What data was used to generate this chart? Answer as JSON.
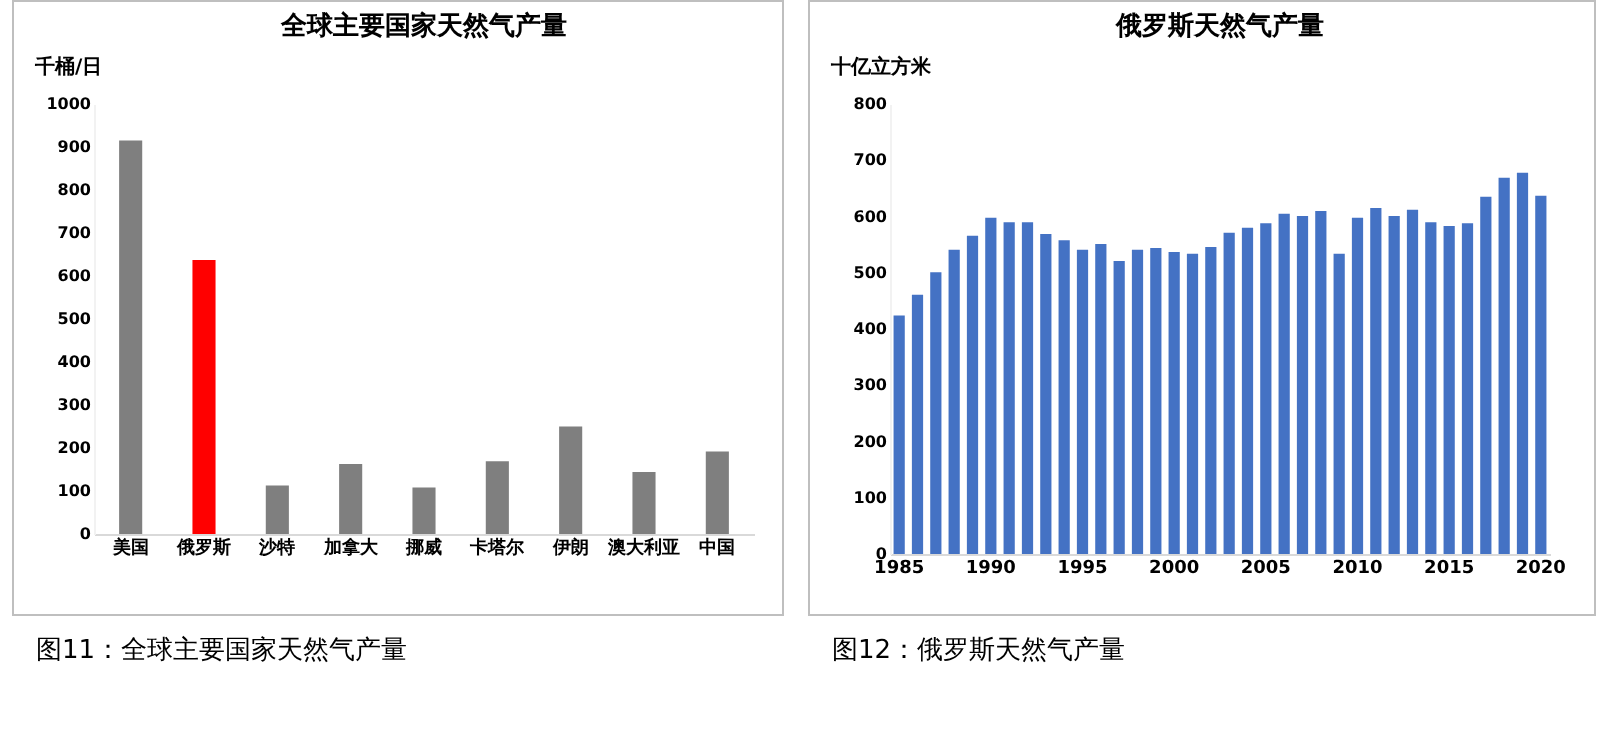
{
  "chart_data": [
    {
      "type": "bar",
      "title": "全球主要国家天然气产量",
      "ylabel": "千桶/日",
      "categories": [
        "美国",
        "俄罗斯",
        "沙特",
        "加拿大",
        "挪威",
        "卡塔尔",
        "伊朗",
        "澳大利亚",
        "中国"
      ],
      "values": [
        915,
        637,
        113,
        163,
        108,
        169,
        250,
        144,
        192
      ],
      "colors": [
        "#7f7f7f",
        "#ff0000",
        "#7f7f7f",
        "#7f7f7f",
        "#7f7f7f",
        "#7f7f7f",
        "#7f7f7f",
        "#7f7f7f",
        "#7f7f7f"
      ],
      "ylim": [
        0,
        1000
      ],
      "yticks": [
        0,
        100,
        200,
        300,
        400,
        500,
        600,
        700,
        800,
        900,
        1000
      ],
      "grid": false,
      "annotations": [
        "图11：全球主要国家天然气产量"
      ]
    },
    {
      "type": "bar",
      "title": "俄罗斯天然气产量",
      "ylabel": "十亿立方米",
      "categories": [
        "1985",
        null,
        null,
        null,
        null,
        "1990",
        null,
        null,
        null,
        null,
        "1995",
        null,
        null,
        null,
        null,
        "2000",
        null,
        null,
        null,
        null,
        "2005",
        null,
        null,
        null,
        null,
        "2010",
        null,
        null,
        null,
        null,
        "2015",
        null,
        null,
        null,
        null,
        "2020"
      ],
      "values": [
        424,
        461,
        501,
        541,
        566,
        598,
        590,
        590,
        569,
        558,
        541,
        551,
        521,
        541,
        544,
        537,
        534,
        546,
        571,
        580,
        588,
        605,
        601,
        610,
        534,
        598,
        615,
        601,
        612,
        590,
        583,
        588,
        635,
        669,
        678,
        637
      ],
      "color": "#4472c4",
      "ylim": [
        0,
        800
      ],
      "yticks": [
        0,
        100,
        200,
        300,
        400,
        500,
        600,
        700,
        800
      ],
      "grid": false,
      "annotations": [
        "图12：俄罗斯天然气产量"
      ]
    }
  ]
}
